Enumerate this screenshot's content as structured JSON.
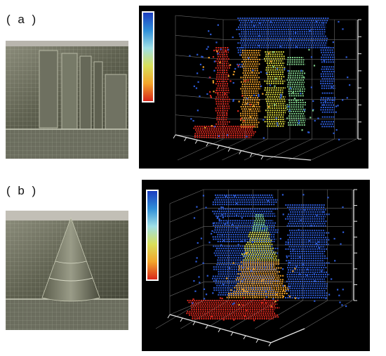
{
  "panels": [
    {
      "label": "( a )",
      "object": "flat-panels",
      "colorbar": [
        "#1b3dbf",
        "#2f8fd8",
        "#9fe0e6",
        "#d8e05a",
        "#f3a52a",
        "#d8261b"
      ]
    },
    {
      "label": "( b )",
      "object": "cone",
      "colorbar": [
        "#1b3dbf",
        "#2f8fd8",
        "#9fe0e6",
        "#d8e05a",
        "#f3a52a",
        "#d8261b"
      ]
    }
  ],
  "colors": {
    "blue": "#2d5bd6",
    "green": "#7fd08a",
    "yellow": "#d9d83c",
    "orange": "#f0a12a",
    "red": "#d8281e",
    "grid": "#6a6a6a"
  }
}
